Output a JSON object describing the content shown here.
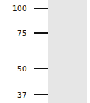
{
  "chart_data": {
    "type": "western_blot",
    "log": "y",
    "ylim": [
      33.6,
      110
    ],
    "yticks": [
      100,
      75,
      50,
      37
    ],
    "tick_labels": "y",
    "color": "#e6e6e6",
    "grid": false
  }
}
